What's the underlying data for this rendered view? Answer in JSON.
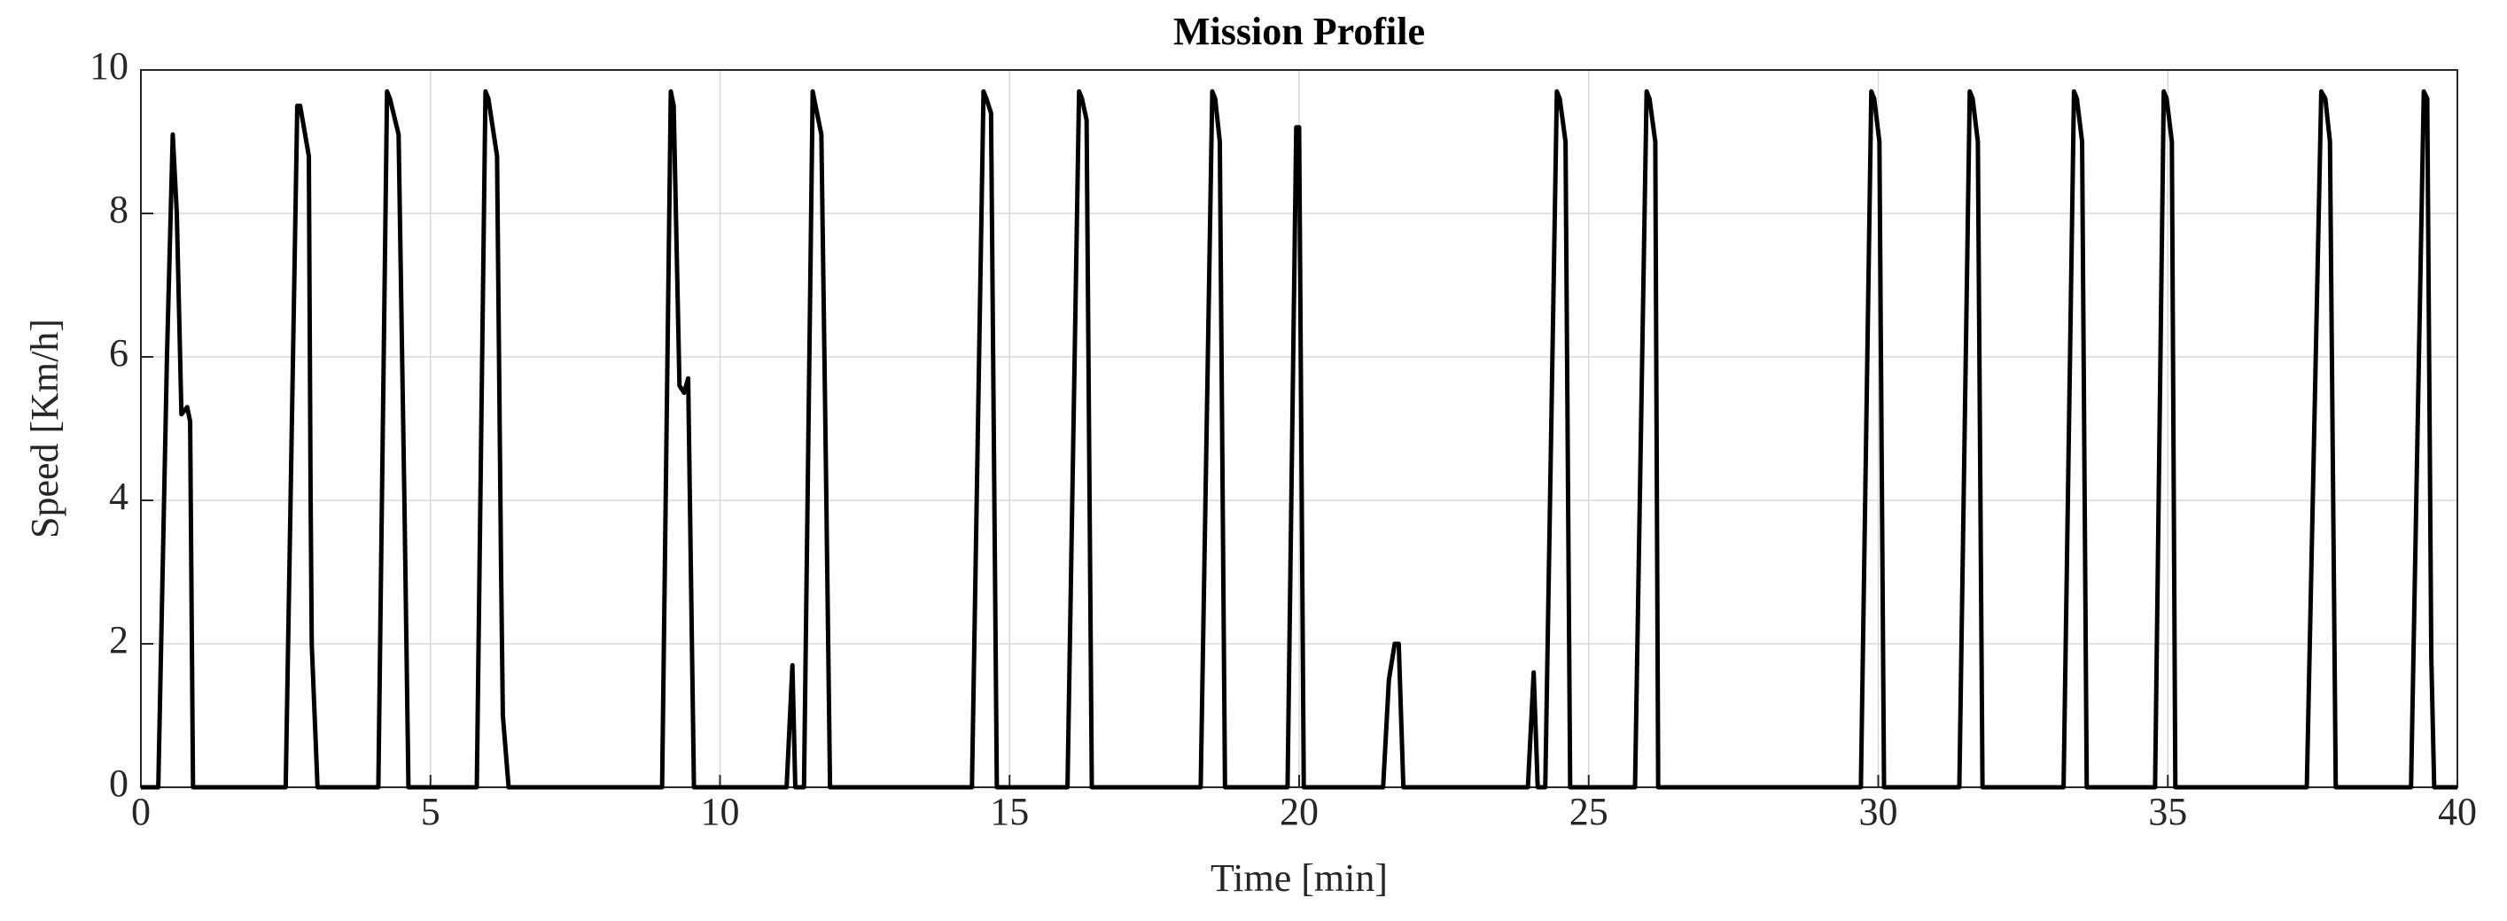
{
  "chart_data": {
    "type": "line",
    "title": "Mission Profile",
    "xlabel": "Time [min]",
    "ylabel": "Speed [Km/h]",
    "color": "#000000",
    "grid": true,
    "xlim": [
      0,
      40
    ],
    "xticks": [
      0,
      5,
      10,
      15,
      20,
      25,
      30,
      35,
      40
    ],
    "ylim": [
      0,
      10
    ],
    "yticks": [
      0,
      2,
      4,
      6,
      8,
      10
    ],
    "x": [
      0,
      0.3,
      0.45,
      0.55,
      0.62,
      0.7,
      0.8,
      0.85,
      0.9,
      2.5,
      2.7,
      2.75,
      2.9,
      2.93,
      2.95,
      3.05,
      4.1,
      4.25,
      4.3,
      4.45,
      4.55,
      4.62,
      5.8,
      5.95,
      6.0,
      6.15,
      6.22,
      6.25,
      6.35,
      9.0,
      9.15,
      9.2,
      9.3,
      9.38,
      9.45,
      9.55,
      11.15,
      11.25,
      11.3,
      11.45,
      11.6,
      11.65,
      11.75,
      11.82,
      11.9,
      14.35,
      14.55,
      14.6,
      14.68,
      14.78,
      16.0,
      16.2,
      16.25,
      16.33,
      16.42,
      18.3,
      18.5,
      18.55,
      18.63,
      18.72,
      19.8,
      19.95,
      20.0,
      20.08,
      21.45,
      21.55,
      21.65,
      21.72,
      21.8,
      23.95,
      24.05,
      24.12,
      24.25,
      24.45,
      24.5,
      24.6,
      24.68,
      25.8,
      26.0,
      26.05,
      26.15,
      26.2,
      29.7,
      29.88,
      29.93,
      30.02,
      30.1,
      31.4,
      31.58,
      31.63,
      31.72,
      31.8,
      33.2,
      33.38,
      33.43,
      33.52,
      33.6,
      34.78,
      34.93,
      34.98,
      35.07,
      35.13,
      37.4,
      37.65,
      37.72,
      37.8,
      37.9,
      39.2,
      39.42,
      39.48,
      39.55,
      39.6,
      40
    ],
    "values": [
      0,
      0,
      6,
      9.1,
      8,
      5.2,
      5.3,
      5.1,
      0,
      0,
      9.5,
      9.5,
      8.8,
      4.1,
      2,
      0,
      0,
      9.7,
      9.6,
      9.1,
      4,
      0,
      0,
      9.7,
      9.6,
      8.8,
      3.0,
      1,
      0,
      0,
      9.7,
      9.5,
      5.6,
      5.5,
      5.7,
      0,
      0,
      1.7,
      0,
      0,
      9.7,
      9.5,
      9.1,
      5,
      0,
      0,
      9.7,
      9.6,
      9.4,
      0,
      0,
      9.7,
      9.6,
      9.3,
      0,
      0,
      9.7,
      9.6,
      9,
      0,
      0,
      9.2,
      9.2,
      0,
      0,
      1.5,
      2.0,
      2.0,
      0,
      0,
      1.6,
      0,
      0,
      9.7,
      9.6,
      9,
      0,
      0,
      9.7,
      9.6,
      9,
      0,
      0,
      9.7,
      9.6,
      9,
      0,
      0,
      9.7,
      9.6,
      9,
      0,
      0,
      9.7,
      9.6,
      9,
      0,
      0,
      9.7,
      9.6,
      9,
      0,
      0,
      9.7,
      9.6,
      9,
      0,
      0,
      9.7,
      9.6,
      1.8,
      0,
      0
    ]
  }
}
